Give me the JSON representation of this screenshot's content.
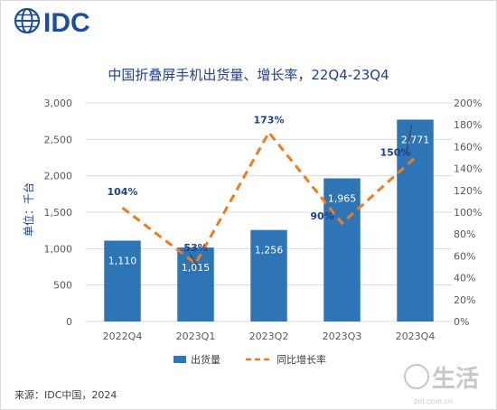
{
  "brand": {
    "name": "IDC",
    "color": "#1b4f9c"
  },
  "watermark": {
    "text": "生活",
    "sub": "zol.com.cn"
  },
  "colors": {
    "bar": "#2e75b6",
    "line": "#f07b1e",
    "title": "#1f3f8f",
    "axis_text": "#595959",
    "grid": "#d9d9d9"
  },
  "chart_data": {
    "type": "bar",
    "title": "中国折叠屏手机出货量、增长率，22Q4-23Q4",
    "ylabel": "单位：千台",
    "categories": [
      "2022Q4",
      "2023Q1",
      "2023Q2",
      "2023Q3",
      "2023Q4"
    ],
    "y_ticks": [
      "0",
      "500",
      "1,000",
      "1,500",
      "2,000",
      "2,500",
      "3,000"
    ],
    "y2_ticks": [
      "0%",
      "20%",
      "40%",
      "60%",
      "80%",
      "100%",
      "120%",
      "140%",
      "160%",
      "180%",
      "200%"
    ],
    "ylim": [
      0,
      3000
    ],
    "y2lim": [
      0,
      200
    ],
    "grid": true,
    "legend_position": "bottom",
    "series": [
      {
        "name": "出货量",
        "type": "bar",
        "axis": "left",
        "values": [
          1110,
          1015,
          1256,
          1965,
          2771
        ],
        "labels": [
          "1,110",
          "1,015",
          "1,256",
          "1,965",
          "2,771"
        ]
      },
      {
        "name": "同比增长率",
        "type": "line",
        "style": "dashed",
        "axis": "right",
        "values": [
          104,
          53,
          173,
          90,
          150
        ],
        "labels": [
          "104%",
          "53%",
          "173%",
          "90%",
          "150%"
        ]
      }
    ]
  },
  "source": "来源：IDC中国，2024"
}
